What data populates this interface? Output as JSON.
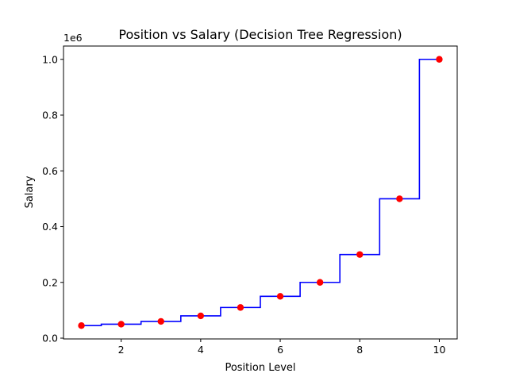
{
  "chart_data": {
    "type": "line",
    "title": "Position vs Salary (Decision Tree Regression)",
    "xlabel": "Position Level",
    "ylabel": "Salary",
    "y_offset_text": "1e6",
    "xlim": [
      0.55,
      10.45
    ],
    "ylim": [
      -0.0028,
      1.0477
    ],
    "x_ticks": [
      2,
      4,
      6,
      8,
      10
    ],
    "y_ticks": [
      0.0,
      0.2,
      0.4,
      0.6,
      0.8,
      1.0
    ],
    "y_tick_labels": [
      "0.0",
      "0.2",
      "0.4",
      "0.6",
      "0.8",
      "1.0"
    ],
    "grid": false,
    "series": [
      {
        "type": "scatter",
        "color": "#ff0000",
        "x": [
          1,
          2,
          3,
          4,
          5,
          6,
          7,
          8,
          9,
          10
        ],
        "y": [
          0.045,
          0.05,
          0.06,
          0.08,
          0.11,
          0.15,
          0.2,
          0.3,
          0.5,
          1.0
        ]
      },
      {
        "type": "step",
        "color": "#0000ff",
        "x": [
          1,
          1.5,
          1.5,
          2.5,
          2.5,
          3.5,
          3.5,
          4.5,
          4.5,
          5.5,
          5.5,
          6.5,
          6.5,
          7.5,
          7.5,
          8.5,
          8.5,
          9.5,
          9.5,
          10
        ],
        "y": [
          0.045,
          0.045,
          0.05,
          0.05,
          0.06,
          0.06,
          0.08,
          0.08,
          0.11,
          0.11,
          0.15,
          0.15,
          0.2,
          0.2,
          0.3,
          0.3,
          0.5,
          0.5,
          1.0,
          1.0
        ]
      }
    ]
  }
}
